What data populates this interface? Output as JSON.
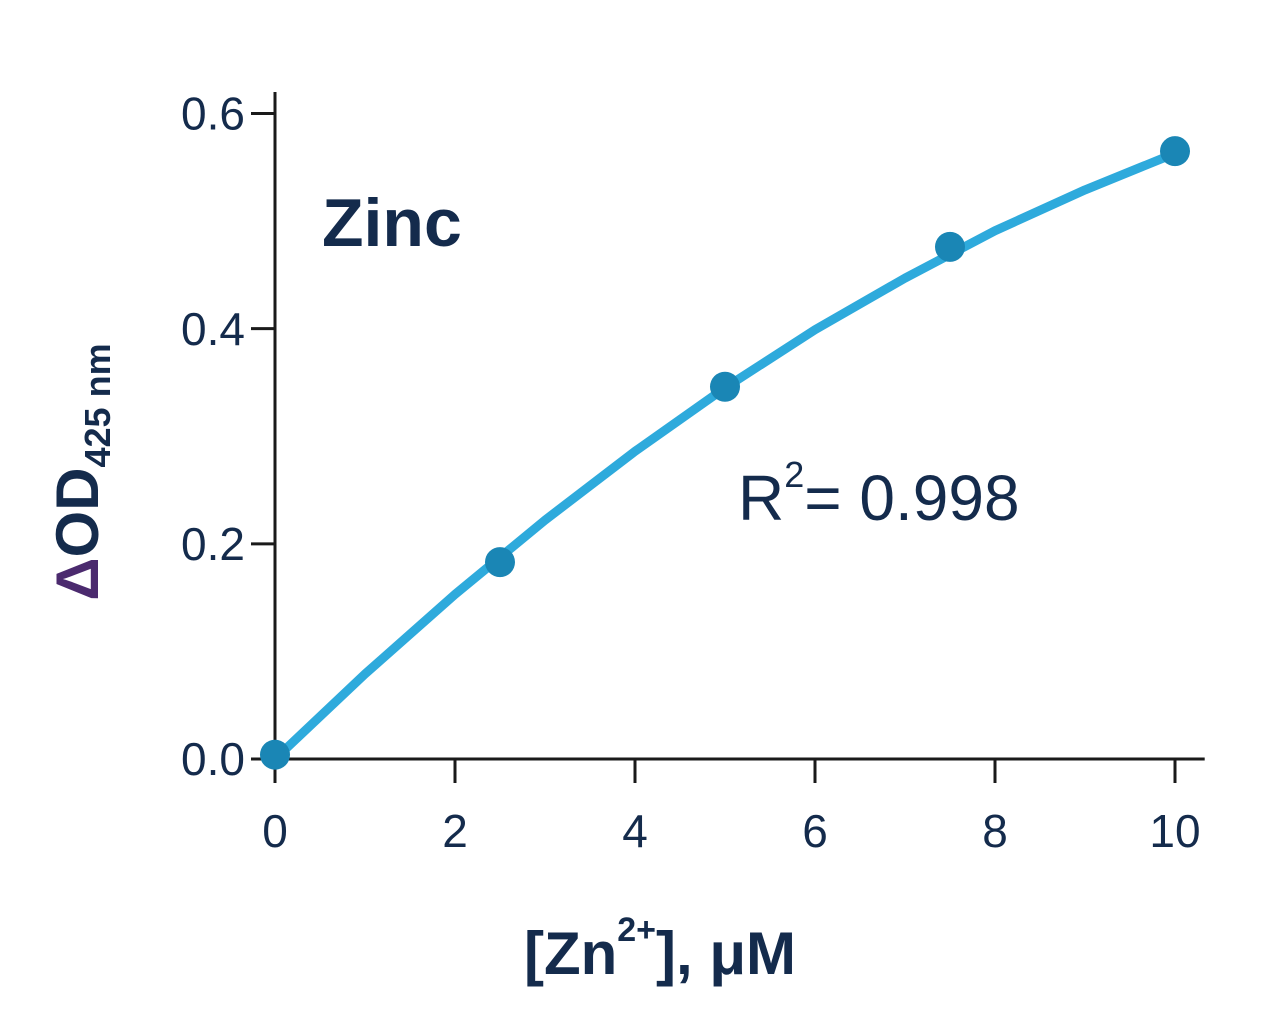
{
  "chart_data": {
    "type": "scatter",
    "title": "Zinc",
    "x_label": {
      "open": "[Zn",
      "superscript": "2+",
      "close": "], μM"
    },
    "y_label": {
      "symbol": "Δ",
      "text": "OD",
      "subscript": "425 nm"
    },
    "annotation": {
      "text": "R",
      "superscript": "2",
      "rest": "= 0.998"
    },
    "xlim": [
      0,
      10.33
    ],
    "ylim": [
      0,
      0.62
    ],
    "xticks": [
      0,
      2,
      4,
      6,
      8,
      10
    ],
    "yticks": [
      {
        "value": 0,
        "label": "0.0"
      },
      0.2,
      0.4,
      0.6
    ],
    "points": {
      "color": "#1a86b5",
      "x": [
        0,
        2.5,
        5,
        7.5,
        10
      ],
      "values": [
        0.004,
        0.183,
        0.346,
        0.476,
        0.565
      ]
    },
    "fit": {
      "color": "#2eaadc",
      "x": [
        0,
        1,
        2,
        3,
        4,
        5,
        6,
        7,
        8,
        9,
        10
      ],
      "values": [
        0,
        0.079,
        0.153,
        0.222,
        0.286,
        0.345,
        0.399,
        0.447,
        0.491,
        0.529,
        0.563
      ]
    }
  }
}
